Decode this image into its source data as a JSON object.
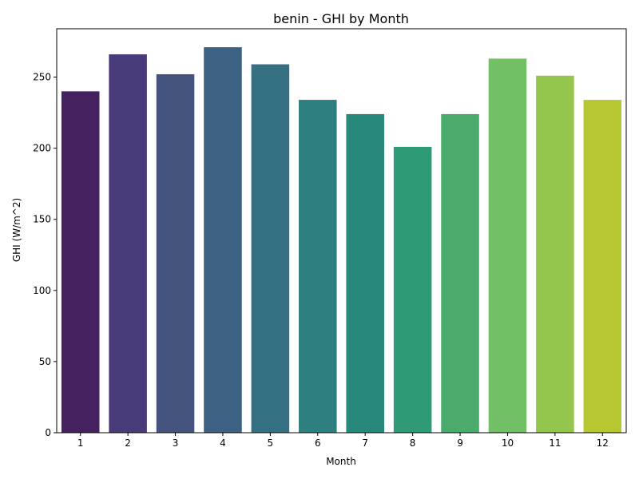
{
  "chart_data": {
    "type": "bar",
    "title": "benin - GHI by Month",
    "xlabel": "Month",
    "ylabel": "GHI (W/m^2)",
    "categories": [
      "1",
      "2",
      "3",
      "4",
      "5",
      "6",
      "7",
      "8",
      "9",
      "10",
      "11",
      "12"
    ],
    "values": [
      240,
      266,
      252,
      271,
      259,
      234,
      224,
      201,
      224,
      263,
      251,
      234
    ],
    "ylim": [
      0,
      284
    ],
    "yticks": [
      0,
      50,
      100,
      150,
      200,
      250
    ],
    "colors": [
      "#46215f",
      "#493a7a",
      "#45537f",
      "#3d6183",
      "#356f82",
      "#2e7f7f",
      "#28897a",
      "#2f9a76",
      "#4aab6d",
      "#72bf66",
      "#94c64d",
      "#b7c731"
    ],
    "grid": false,
    "legend": "none"
  }
}
